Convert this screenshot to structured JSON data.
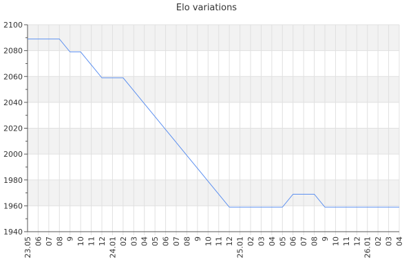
{
  "chart_data": {
    "type": "line",
    "title": "Elo variations",
    "xlabel": "",
    "ylabel": "",
    "ylim": [
      1940,
      2100
    ],
    "yticks": [
      1940,
      1960,
      1980,
      2000,
      2020,
      2040,
      2060,
      2080,
      2100
    ],
    "grid": true,
    "categories": [
      "23.05",
      "06",
      "07",
      "08",
      "9",
      "10",
      "11",
      "12",
      "24.01",
      "02",
      "03",
      "04",
      "05",
      "06",
      "07",
      "08",
      "9",
      "10",
      "11",
      "12",
      "25.01",
      "02",
      "03",
      "04",
      "05",
      "06",
      "07",
      "08",
      "9",
      "10",
      "11",
      "12",
      "26.01",
      "02",
      "03",
      "04"
    ],
    "series": [
      {
        "values": [
          2089,
          2089,
          2089,
          2089,
          2079,
          2079,
          2069,
          2059,
          2059,
          2059,
          2049,
          2039,
          2029,
          2019,
          2009,
          1999,
          1989,
          1979,
          1969,
          1959,
          1959,
          1959,
          1959,
          1959,
          1959,
          1969,
          1969,
          1969,
          1959,
          1959,
          1959,
          1959,
          1959,
          1959,
          1959,
          1959
        ]
      }
    ],
    "colors": {
      "line": "#5b8ff0",
      "band": "#f2f2f2",
      "grid": "#e0e0e0",
      "axis": "#555555"
    }
  }
}
